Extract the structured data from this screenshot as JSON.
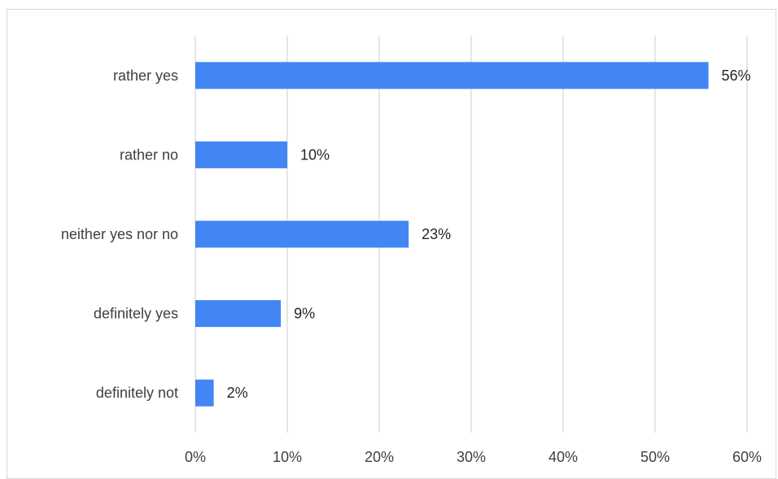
{
  "chart_data": {
    "type": "bar",
    "orientation": "horizontal",
    "categories": [
      "rather yes",
      "rather no",
      "neither yes nor no",
      "definitely yes",
      "definitely not"
    ],
    "values": [
      55.8,
      10.0,
      23.2,
      9.3,
      2.0
    ],
    "value_labels": [
      "56%",
      "10%",
      "23%",
      "9%",
      "2%"
    ],
    "x_ticks": [
      "0%",
      "10%",
      "20%",
      "30%",
      "40%",
      "50%",
      "60%"
    ],
    "xlim": [
      0,
      60
    ],
    "xlabel": "",
    "ylabel": "",
    "title": "",
    "grid": "vertical",
    "legend": "none",
    "bar_color": "#4286f4"
  }
}
